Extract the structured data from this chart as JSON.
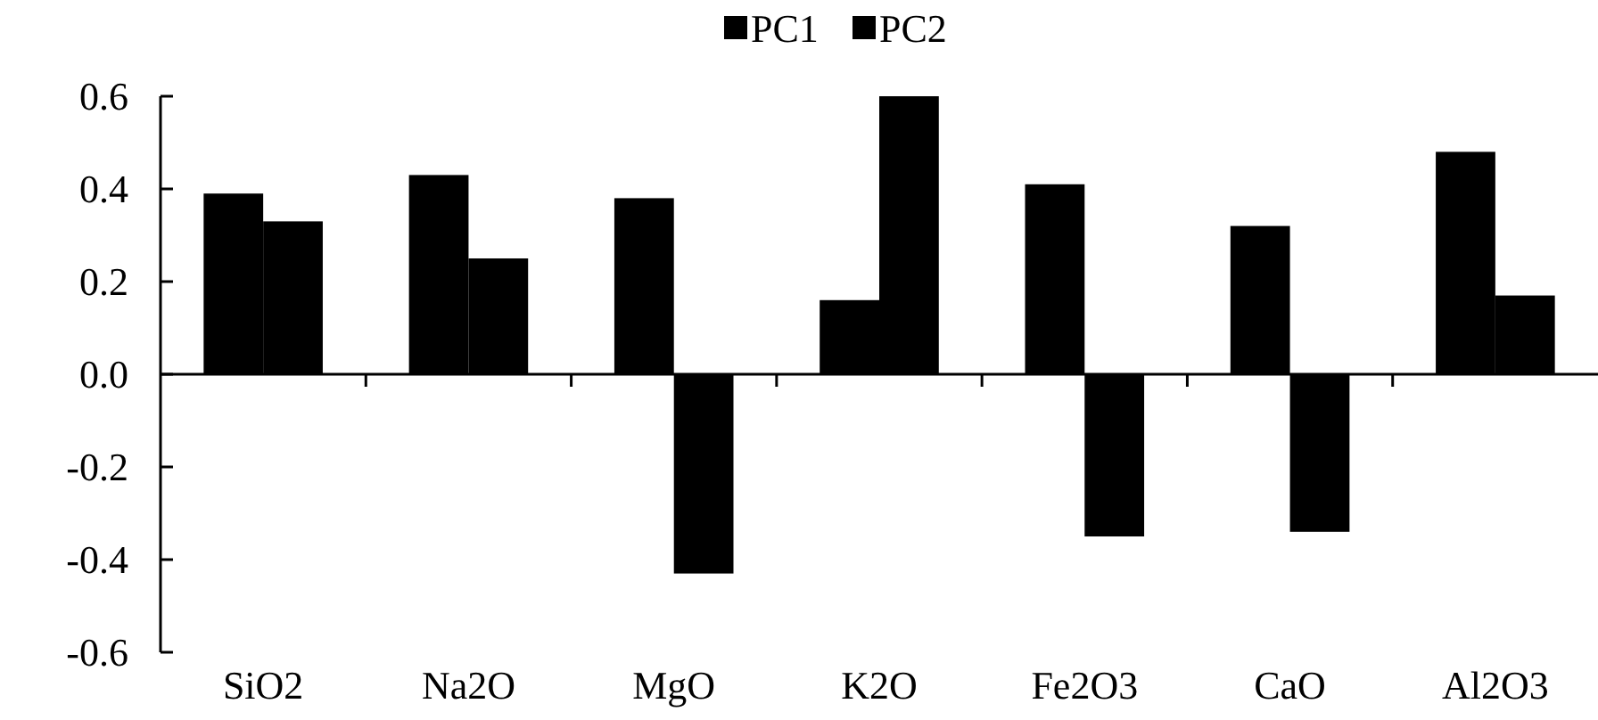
{
  "chart_data": {
    "type": "bar",
    "categories": [
      "SiO2",
      "Na2O",
      "MgO",
      "K2O",
      "Fe2O3",
      "CaO",
      "Al2O3"
    ],
    "series": [
      {
        "name": "PC1",
        "color": "#000000",
        "values": [
          0.39,
          0.43,
          0.38,
          0.16,
          0.41,
          0.32,
          0.48
        ]
      },
      {
        "name": "PC2",
        "color": "#000000",
        "values": [
          0.33,
          0.25,
          -0.43,
          0.6,
          -0.35,
          -0.34,
          0.17
        ]
      }
    ],
    "ylim": [
      -0.6,
      0.6
    ],
    "yticks": [
      {
        "value": -0.6,
        "label": "-0.6"
      },
      {
        "value": -0.4,
        "label": "-0.4"
      },
      {
        "value": -0.2,
        "label": "-0.2"
      },
      {
        "value": 0,
        "label": "0.0"
      },
      {
        "value": 0.2,
        "label": "0.2"
      },
      {
        "value": 0.4,
        "label": "0.4"
      },
      {
        "value": 0.6,
        "label": "0.6"
      }
    ],
    "legend": "top"
  }
}
